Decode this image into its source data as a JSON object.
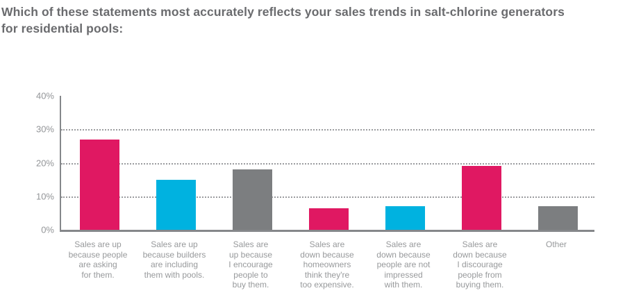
{
  "header": {
    "title_line1": "Which of these statements most accurately reflects your sales trends in salt-chlorine generators",
    "title_line2": "for residential pools:",
    "title_full": "Which of these statements most accurately reflects your sales trends in salt-chlorine generators for residential pools:"
  },
  "chart_data": {
    "type": "bar",
    "title": "Which of these statements most accurately reflects your sales trends in salt-chlorine generators for residential pools:",
    "categories": [
      "Sales are up because people are asking for them.",
      "Sales are up because builders are including them with pools.",
      "Sales are up because I encourage people to buy them.",
      "Sales are down because homeowners think they're too expensive.",
      "Sales are down because people are not impressed with them.",
      "Sales are down because I discourage people from buying them.",
      "Other"
    ],
    "category_lines": [
      [
        "Sales are up",
        "because people",
        "are asking",
        "for them."
      ],
      [
        "Sales are up",
        "because builders",
        "are including",
        "them with pools."
      ],
      [
        "Sales are",
        "up because",
        "I encourage",
        "people to",
        "buy them."
      ],
      [
        "Sales are",
        "down because",
        "homeowners",
        "think they're",
        "too expensive."
      ],
      [
        "Sales are",
        "down because",
        "people are not",
        "impressed",
        "with them."
      ],
      [
        "Sales are",
        "down because",
        "I discourage",
        "people from",
        "buying them."
      ],
      [
        "Other"
      ]
    ],
    "values": [
      27,
      15,
      18,
      6.4,
      7,
      19,
      7
    ],
    "unit": "%",
    "bar_colors": [
      "#e01862",
      "#00b2e0",
      "#7c7e80",
      "#e01862",
      "#00b2e0",
      "#e01862",
      "#7c7e80"
    ],
    "y_ticks": [
      "40%",
      "30%",
      "20%",
      "10%",
      "0%"
    ],
    "y_tick_values": [
      40,
      30,
      20,
      10,
      0
    ],
    "ylim": [
      0,
      40
    ],
    "gridline_values": [
      30,
      20,
      10
    ],
    "grid_style": "dotted",
    "legend": "none",
    "xlabel": "",
    "ylabel": "",
    "colors": {
      "pink": "#e01862",
      "cyan": "#00b2e0",
      "gray": "#7c7e80",
      "axis": "#85878a",
      "grid": "#9a9b9e",
      "title_text": "#6a6b6e",
      "tick_text": "#939598",
      "category_text": "#97999b"
    }
  }
}
